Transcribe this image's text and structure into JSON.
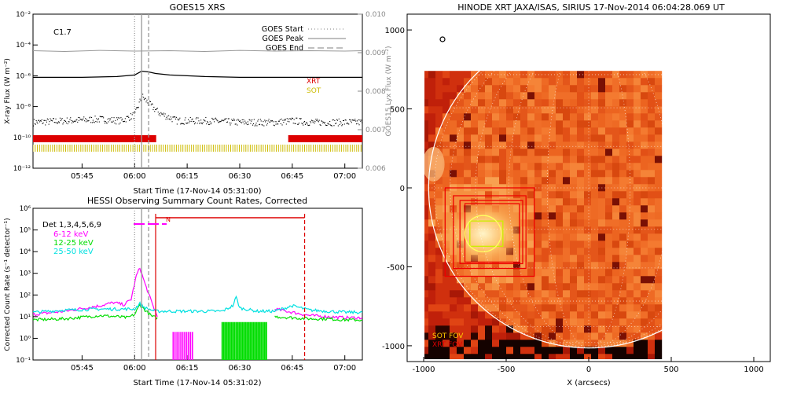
{
  "chart_data": [
    {
      "type": "line",
      "title": "GOES15 XRS",
      "xlabel": "Start Time (17-Nov-14 05:31:00)",
      "ylabel": "X-ray Flux (W m⁻²)",
      "y2label": "GOES15 Lyx Flux (W m⁻²)",
      "x_ticks": [
        "05:45",
        "06:00",
        "06:15",
        "06:30",
        "06:45",
        "07:00"
      ],
      "x_tick_minutes": [
        345,
        360,
        375,
        390,
        405,
        420
      ],
      "xlim_minutes": [
        331,
        425
      ],
      "y_scale": "log",
      "ylim_exp": [
        -12,
        -2
      ],
      "y_ticks": [
        "10⁻¹²",
        "10⁻¹⁰",
        "10⁻⁸",
        "10⁻⁶",
        "10⁻⁴",
        "10⁻²"
      ],
      "y_tick_exp": [
        -12,
        -10,
        -8,
        -6,
        -4,
        -2
      ],
      "y2lim": [
        0.006,
        0.01
      ],
      "y2_ticks": [
        "0.006",
        "0.007",
        "0.008",
        "0.009",
        "0.010"
      ],
      "y2_tick_values": [
        0.006,
        0.007,
        0.008,
        0.009,
        0.01
      ],
      "flare_class": "C1.7",
      "legend": [
        {
          "label": "GOES Start",
          "style": "dotted"
        },
        {
          "label": "GOES Peak",
          "style": "solid"
        },
        {
          "label": "GOES End",
          "style": "dashed"
        }
      ],
      "markers_minutes": {
        "start": 360,
        "peak": 362,
        "end": 364
      },
      "coverage_labels": [
        {
          "label": "XRT",
          "color": "#dd0000"
        },
        {
          "label": "SOT",
          "color": "#ccbb00"
        }
      ],
      "series": [
        {
          "name": "Lyx",
          "axis": "right",
          "color": "#999999",
          "x": [
            331,
            340,
            350,
            360,
            370,
            380,
            390,
            400,
            410,
            420,
            425
          ],
          "y": [
            0.00905,
            0.00903,
            0.00906,
            0.00904,
            0.00905,
            0.00903,
            0.00906,
            0.00904,
            0.00905,
            0.00904,
            0.00905
          ]
        },
        {
          "name": "XRS long",
          "axis": "left",
          "color": "#000000",
          "x": [
            331,
            345,
            355,
            360,
            362,
            364,
            366,
            370,
            380,
            390,
            400,
            410,
            420,
            425
          ],
          "y_exp": [
            -6.1,
            -6.1,
            -6.05,
            -5.95,
            -5.7,
            -5.75,
            -5.85,
            -5.95,
            -6.05,
            -6.1,
            -6.1,
            -6.1,
            -6.1,
            -6.1
          ]
        },
        {
          "name": "XRS short",
          "axis": "left",
          "color": "#000000",
          "style": "dotted",
          "x": [
            331,
            340,
            350,
            356,
            360,
            362,
            364,
            367,
            372,
            380,
            390,
            400,
            405,
            410,
            420,
            425
          ],
          "y_exp": [
            -9.0,
            -8.9,
            -8.8,
            -8.9,
            -8.5,
            -7.3,
            -7.8,
            -8.4,
            -8.9,
            -8.9,
            -9.0,
            -9.0,
            -8.9,
            -9.0,
            -9.0,
            -9.0
          ]
        }
      ],
      "coverage": {
        "xrt_intervals": [
          [
            331,
            366
          ],
          [
            404,
            425
          ]
        ],
        "sot_intervals": [
          [
            331,
            425
          ]
        ]
      }
    },
    {
      "type": "line",
      "title": "HESSI Observing Summary Count Rates, Corrected",
      "xlabel": "Start Time (17-Nov-14 05:31:02)",
      "ylabel": "Corrected Count Rate (s⁻¹ detector⁻¹)",
      "x_ticks": [
        "05:45",
        "06:00",
        "06:15",
        "06:30",
        "06:45",
        "07:00"
      ],
      "x_tick_minutes": [
        345,
        360,
        375,
        390,
        405,
        420
      ],
      "xlim_minutes": [
        331,
        425
      ],
      "y_scale": "log",
      "ylim_exp": [
        -1,
        6
      ],
      "y_ticks": [
        "10⁻¹",
        "10⁰",
        "10¹",
        "10²",
        "10³",
        "10⁴",
        "10⁵",
        "10⁶"
      ],
      "y_tick_exp": [
        -1,
        0,
        1,
        2,
        3,
        4,
        5,
        6
      ],
      "detectors_label": "Det 1,3,4,5,6,9",
      "night_label": "N",
      "legend": [
        {
          "label": "6-12 keV",
          "color": "#ff00ff"
        },
        {
          "label": "12-25 keV",
          "color": "#00dd00"
        },
        {
          "label": "25-50 keV",
          "color": "#00e0e0"
        }
      ],
      "markers_minutes": {
        "start": 360,
        "peak": 362,
        "end": 364
      },
      "night_interval_minutes": [
        366,
        400
      ],
      "series": [
        {
          "name": "6-12 keV",
          "color": "#ff00ff",
          "x": [
            331,
            340,
            350,
            354,
            357,
            359,
            360.5,
            361.5,
            363,
            365,
            366.5
          ],
          "y_exp": [
            1.1,
            1.25,
            1.5,
            1.65,
            1.55,
            1.8,
            2.9,
            3.25,
            2.5,
            1.6,
            1.0
          ]
        },
        {
          "name": "6-12 keV (after)",
          "color": "#ff00ff",
          "x": [
            400,
            405,
            410,
            415,
            420,
            425
          ],
          "y_exp": [
            1.35,
            1.2,
            1.05,
            1.0,
            0.95,
            0.95
          ]
        },
        {
          "name": "12-25 keV",
          "color": "#00dd00",
          "x": [
            331,
            340,
            350,
            355,
            358,
            360,
            361.5,
            363,
            365,
            366.5
          ],
          "y_exp": [
            0.85,
            0.9,
            1.05,
            1.0,
            0.95,
            1.1,
            1.55,
            1.3,
            1.0,
            0.95
          ]
        },
        {
          "name": "12-25 keV (after)",
          "color": "#00dd00",
          "x": [
            400,
            405,
            410,
            415,
            420,
            425
          ],
          "y_exp": [
            1.0,
            0.95,
            0.9,
            0.9,
            0.85,
            0.85
          ]
        },
        {
          "name": "25-50 keV",
          "color": "#00e0e0",
          "x": [
            331,
            340,
            350,
            360,
            361.5,
            363,
            366,
            375,
            385,
            388,
            389,
            390,
            395,
            400,
            405,
            410,
            420,
            425
          ],
          "y_exp": [
            1.2,
            1.3,
            1.35,
            1.35,
            1.6,
            1.4,
            1.25,
            1.25,
            1.25,
            1.5,
            1.9,
            1.4,
            1.25,
            1.25,
            1.5,
            1.3,
            1.2,
            1.2
          ]
        }
      ],
      "attenuator_blocks": {
        "magenta_intervals": [
          [
            371,
            377
          ]
        ],
        "green_intervals": [
          [
            385,
            398
          ]
        ]
      }
    },
    {
      "type": "heatmap",
      "title": "HINODE XRT JAXA/ISAS, SIRIUS 17-Nov-2014 06:04:28.069 UT",
      "xlabel": "X (arcsecs)",
      "ylabel": "Y (arcsecs)",
      "xlim": [
        -1100,
        1100
      ],
      "ylim": [
        -1100,
        1100
      ],
      "x_ticks": [
        "-1000",
        "-500",
        "0",
        "500",
        "1000"
      ],
      "x_tick_values": [
        -1000,
        -500,
        0,
        500,
        1000
      ],
      "y_ticks": [
        "-1000",
        "-500",
        "0",
        "500",
        "1000"
      ],
      "y_tick_values": [
        -1000,
        -500,
        0,
        500,
        1000
      ],
      "image_extent": {
        "x": [
          -1100,
          440
        ],
        "y": [
          -1100,
          740
        ]
      },
      "solar_radius": 970,
      "fov_labels": [
        {
          "label": "SOT FOV",
          "color": "#ffcc00"
        },
        {
          "label": "XRT FOV",
          "color": "#dd0000"
        }
      ],
      "xrt_fov_boxes": [
        {
          "x": [
            -870,
            -330
          ],
          "y": [
            -560,
            0
          ]
        },
        {
          "x": [
            -820,
            -380
          ],
          "y": [
            -510,
            -50
          ]
        },
        {
          "x": [
            -780,
            -400
          ],
          "y": [
            -480,
            -80
          ]
        },
        {
          "x": [
            -750,
            -420
          ],
          "y": [
            -470,
            -100
          ]
        }
      ],
      "sot_fov_box": {
        "x": [
          -720,
          -520
        ],
        "y": [
          -370,
          -210
        ]
      },
      "active_region_circle": {
        "x": -640,
        "y": -290,
        "r": 110
      },
      "colors": {
        "background": "#ffffff",
        "map_base": "#e85a14",
        "map_bright": "#ffd080",
        "map_dark": "#9b1a06"
      }
    }
  ]
}
